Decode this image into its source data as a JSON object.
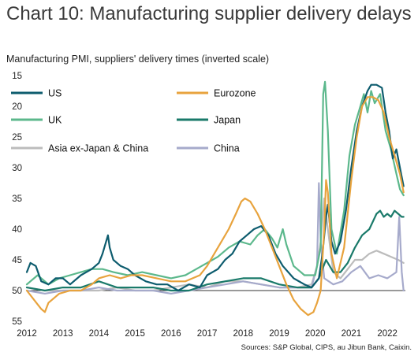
{
  "title": "Chart 10: Manufacturing supplier delivery delays",
  "subtitle": "Manufacturing PMI, suppliers' delivery times (inverted scale)",
  "source": "Sources: S&P Global, CIPS, au Jibun Bank, Caixin.",
  "colors": {
    "US": "#0d5c6e",
    "Eurozone": "#e8a33d",
    "UK": "#5cb88c",
    "Japan": "#1a7a6a",
    "Asia ex-Japan & China": "#bcbcbc",
    "China": "#a6aacb"
  },
  "chart_data": {
    "type": "line",
    "title": "Chart 10: Manufacturing supplier delivery delays",
    "ylabel": "Manufacturing PMI, suppliers' delivery times (inverted scale)",
    "xlabel": "",
    "y_inverted": true,
    "ylim": [
      15,
      55
    ],
    "xlim": [
      2012,
      2022.5
    ],
    "x_ticks": [
      "2012",
      "2013",
      "2014",
      "2015",
      "2016",
      "2017",
      "2018",
      "2019",
      "2020",
      "2021",
      "2022"
    ],
    "y_ticks": [
      "15",
      "20",
      "25",
      "30",
      "35",
      "40",
      "45",
      "50",
      "55"
    ],
    "reference_line": 50,
    "legend": {
      "placement": "top",
      "columns": 2,
      "entries": [
        "US",
        "Eurozone",
        "UK",
        "Japan",
        "Asia ex-Japan & China",
        "China"
      ]
    },
    "series": [
      {
        "name": "US",
        "points": [
          [
            2012.0,
            47
          ],
          [
            2012.1,
            45.5
          ],
          [
            2012.25,
            46
          ],
          [
            2012.4,
            48.5
          ],
          [
            2012.6,
            49
          ],
          [
            2012.8,
            48
          ],
          [
            2013.0,
            48
          ],
          [
            2013.2,
            49
          ],
          [
            2013.5,
            47.5
          ],
          [
            2013.8,
            46.5
          ],
          [
            2014.0,
            45.5
          ],
          [
            2014.1,
            44
          ],
          [
            2014.2,
            42
          ],
          [
            2014.25,
            41
          ],
          [
            2014.3,
            43
          ],
          [
            2014.4,
            45
          ],
          [
            2014.6,
            46
          ],
          [
            2014.8,
            46.5
          ],
          [
            2015.0,
            47.5
          ],
          [
            2015.3,
            48.5
          ],
          [
            2015.6,
            49
          ],
          [
            2015.9,
            49
          ],
          [
            2016.2,
            50
          ],
          [
            2016.5,
            49
          ],
          [
            2016.8,
            49.5
          ],
          [
            2017.0,
            47.5
          ],
          [
            2017.3,
            46.5
          ],
          [
            2017.5,
            45
          ],
          [
            2017.7,
            44
          ],
          [
            2017.9,
            42
          ],
          [
            2018.1,
            41
          ],
          [
            2018.3,
            40
          ],
          [
            2018.5,
            39.5
          ],
          [
            2018.7,
            41
          ],
          [
            2018.9,
            44
          ],
          [
            2019.1,
            46
          ],
          [
            2019.4,
            48
          ],
          [
            2019.7,
            49
          ],
          [
            2019.9,
            49.5
          ],
          [
            2020.1,
            48
          ],
          [
            2020.2,
            44
          ],
          [
            2020.3,
            38
          ],
          [
            2020.35,
            36
          ],
          [
            2020.45,
            42
          ],
          [
            2020.55,
            44
          ],
          [
            2020.7,
            42
          ],
          [
            2020.85,
            37
          ],
          [
            2021.0,
            30
          ],
          [
            2021.15,
            24
          ],
          [
            2021.3,
            20
          ],
          [
            2021.45,
            17.5
          ],
          [
            2021.55,
            16.5
          ],
          [
            2021.7,
            16.5
          ],
          [
            2021.85,
            17
          ],
          [
            2021.95,
            21
          ],
          [
            2022.05,
            24
          ],
          [
            2022.15,
            28.5
          ],
          [
            2022.25,
            27
          ],
          [
            2022.35,
            30
          ],
          [
            2022.45,
            33
          ]
        ]
      },
      {
        "name": "Eurozone",
        "points": [
          [
            2012.0,
            50
          ],
          [
            2012.2,
            51.5
          ],
          [
            2012.4,
            53
          ],
          [
            2012.5,
            53.5
          ],
          [
            2012.6,
            52
          ],
          [
            2012.9,
            50.5
          ],
          [
            2013.2,
            50
          ],
          [
            2013.5,
            50
          ],
          [
            2013.8,
            49
          ],
          [
            2014.0,
            48
          ],
          [
            2014.3,
            47.5
          ],
          [
            2014.6,
            48
          ],
          [
            2014.9,
            47.5
          ],
          [
            2015.2,
            47.5
          ],
          [
            2015.6,
            48
          ],
          [
            2016.0,
            48.5
          ],
          [
            2016.4,
            48.5
          ],
          [
            2016.8,
            47.5
          ],
          [
            2017.0,
            46
          ],
          [
            2017.2,
            44
          ],
          [
            2017.4,
            42
          ],
          [
            2017.6,
            40
          ],
          [
            2017.8,
            37.5
          ],
          [
            2017.95,
            35.5
          ],
          [
            2018.05,
            35
          ],
          [
            2018.2,
            35.5
          ],
          [
            2018.4,
            37.5
          ],
          [
            2018.6,
            40
          ],
          [
            2018.8,
            43
          ],
          [
            2019.0,
            46
          ],
          [
            2019.2,
            49
          ],
          [
            2019.4,
            51.5
          ],
          [
            2019.6,
            53
          ],
          [
            2019.8,
            54
          ],
          [
            2019.95,
            53.5
          ],
          [
            2020.05,
            52
          ],
          [
            2020.15,
            50
          ],
          [
            2020.25,
            40
          ],
          [
            2020.3,
            32
          ],
          [
            2020.35,
            34
          ],
          [
            2020.45,
            44
          ],
          [
            2020.6,
            48
          ],
          [
            2020.8,
            43
          ],
          [
            2021.0,
            32
          ],
          [
            2021.15,
            25
          ],
          [
            2021.3,
            20
          ],
          [
            2021.45,
            18.5
          ],
          [
            2021.6,
            18.5
          ],
          [
            2021.75,
            19
          ],
          [
            2021.9,
            21
          ],
          [
            2022.05,
            25
          ],
          [
            2022.2,
            28
          ],
          [
            2022.35,
            31
          ],
          [
            2022.45,
            34
          ]
        ]
      },
      {
        "name": "UK",
        "points": [
          [
            2012.0,
            49
          ],
          [
            2012.3,
            47.5
          ],
          [
            2012.6,
            49
          ],
          [
            2012.9,
            48
          ],
          [
            2013.2,
            47.5
          ],
          [
            2013.5,
            47
          ],
          [
            2013.8,
            46.5
          ],
          [
            2014.1,
            46.5
          ],
          [
            2014.4,
            47
          ],
          [
            2014.8,
            47.5
          ],
          [
            2015.2,
            47
          ],
          [
            2015.6,
            47.5
          ],
          [
            2016.0,
            48
          ],
          [
            2016.4,
            47.5
          ],
          [
            2016.7,
            46.5
          ],
          [
            2017.0,
            45.5
          ],
          [
            2017.3,
            44.5
          ],
          [
            2017.6,
            43
          ],
          [
            2017.9,
            42
          ],
          [
            2018.2,
            42.5
          ],
          [
            2018.4,
            41
          ],
          [
            2018.6,
            40
          ],
          [
            2018.8,
            41.5
          ],
          [
            2018.95,
            43
          ],
          [
            2019.1,
            40
          ],
          [
            2019.2,
            42.5
          ],
          [
            2019.4,
            46
          ],
          [
            2019.7,
            47.5
          ],
          [
            2020.0,
            47.5
          ],
          [
            2020.15,
            43
          ],
          [
            2020.22,
            18
          ],
          [
            2020.27,
            16
          ],
          [
            2020.35,
            24
          ],
          [
            2020.45,
            40
          ],
          [
            2020.6,
            44
          ],
          [
            2020.8,
            37
          ],
          [
            2020.95,
            28
          ],
          [
            2021.1,
            23
          ],
          [
            2021.25,
            20
          ],
          [
            2021.35,
            18
          ],
          [
            2021.45,
            21
          ],
          [
            2021.55,
            17.5
          ],
          [
            2021.65,
            19.5
          ],
          [
            2021.8,
            18
          ],
          [
            2021.95,
            24
          ],
          [
            2022.1,
            27
          ],
          [
            2022.25,
            31
          ],
          [
            2022.35,
            33.5
          ],
          [
            2022.45,
            34.5
          ]
        ]
      },
      {
        "name": "Japan",
        "points": [
          [
            2012.0,
            49.5
          ],
          [
            2012.5,
            50
          ],
          [
            2013.0,
            49.5
          ],
          [
            2013.5,
            49.5
          ],
          [
            2014.0,
            48.5
          ],
          [
            2014.5,
            49.5
          ],
          [
            2015.0,
            49.5
          ],
          [
            2015.5,
            49.5
          ],
          [
            2016.0,
            50
          ],
          [
            2016.5,
            50
          ],
          [
            2017.0,
            49
          ],
          [
            2017.5,
            48.5
          ],
          [
            2018.0,
            48
          ],
          [
            2018.5,
            48
          ],
          [
            2019.0,
            49
          ],
          [
            2019.5,
            49.5
          ],
          [
            2019.9,
            49.5
          ],
          [
            2020.1,
            48
          ],
          [
            2020.3,
            45
          ],
          [
            2020.5,
            47
          ],
          [
            2020.7,
            47
          ],
          [
            2020.9,
            45.5
          ],
          [
            2021.1,
            43
          ],
          [
            2021.3,
            41
          ],
          [
            2021.5,
            40
          ],
          [
            2021.7,
            37.5
          ],
          [
            2021.8,
            37
          ],
          [
            2021.9,
            38
          ],
          [
            2022.0,
            37.5
          ],
          [
            2022.1,
            38
          ],
          [
            2022.2,
            37
          ],
          [
            2022.3,
            37.5
          ],
          [
            2022.4,
            38
          ],
          [
            2022.45,
            38
          ]
        ]
      },
      {
        "name": "Asia ex-Japan & China",
        "points": [
          [
            2012.0,
            49.5
          ],
          [
            2012.5,
            50
          ],
          [
            2013.0,
            50
          ],
          [
            2013.5,
            50
          ],
          [
            2014.0,
            50
          ],
          [
            2014.5,
            49.5
          ],
          [
            2015.0,
            50
          ],
          [
            2015.5,
            50
          ],
          [
            2016.0,
            49.5
          ],
          [
            2016.5,
            49
          ],
          [
            2017.0,
            49.5
          ],
          [
            2017.5,
            48.5
          ],
          [
            2018.0,
            48.5
          ],
          [
            2018.5,
            49
          ],
          [
            2019.0,
            49.5
          ],
          [
            2019.5,
            49.5
          ],
          [
            2019.9,
            49
          ],
          [
            2020.05,
            46
          ],
          [
            2020.15,
            42
          ],
          [
            2020.25,
            35
          ],
          [
            2020.35,
            40
          ],
          [
            2020.5,
            47
          ],
          [
            2020.7,
            48
          ],
          [
            2020.9,
            46.5
          ],
          [
            2021.1,
            45
          ],
          [
            2021.3,
            45
          ],
          [
            2021.5,
            44
          ],
          [
            2021.7,
            43.5
          ],
          [
            2021.9,
            44
          ],
          [
            2022.1,
            44.5
          ],
          [
            2022.3,
            45
          ],
          [
            2022.45,
            45.5
          ]
        ]
      },
      {
        "name": "China",
        "points": [
          [
            2012.0,
            50
          ],
          [
            2012.5,
            50.5
          ],
          [
            2013.0,
            50
          ],
          [
            2013.5,
            50
          ],
          [
            2014.0,
            49.5
          ],
          [
            2014.5,
            50
          ],
          [
            2015.0,
            50
          ],
          [
            2015.5,
            50
          ],
          [
            2016.0,
            50.5
          ],
          [
            2016.5,
            50
          ],
          [
            2017.0,
            49.5
          ],
          [
            2017.5,
            49
          ],
          [
            2018.0,
            48.5
          ],
          [
            2018.5,
            49
          ],
          [
            2019.0,
            49.5
          ],
          [
            2019.5,
            49.5
          ],
          [
            2019.9,
            49.5
          ],
          [
            2020.05,
            46
          ],
          [
            2020.1,
            32.5
          ],
          [
            2020.15,
            42
          ],
          [
            2020.25,
            48
          ],
          [
            2020.5,
            49
          ],
          [
            2020.75,
            48.5
          ],
          [
            2021.0,
            47
          ],
          [
            2021.25,
            46
          ],
          [
            2021.5,
            48
          ],
          [
            2021.75,
            47.5
          ],
          [
            2022.0,
            48
          ],
          [
            2022.25,
            47
          ],
          [
            2022.33,
            38
          ],
          [
            2022.4,
            47
          ],
          [
            2022.45,
            50
          ]
        ]
      }
    ]
  }
}
